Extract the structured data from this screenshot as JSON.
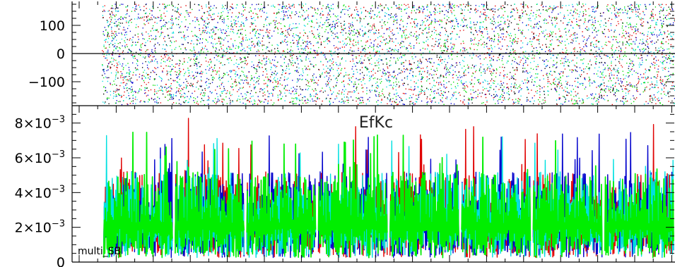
{
  "chart_data": [
    {
      "type": "scatter",
      "panel": "top",
      "title": "",
      "xlabel": "",
      "ylabel": "",
      "ylim": [
        -185,
        185
      ],
      "y_ticks": [
        {
          "value": 100,
          "label": "100"
        },
        {
          "value": 0,
          "label": "0"
        },
        {
          "value": -100,
          "label": "−100"
        }
      ],
      "x_range": [
        0,
        1
      ],
      "data_start": 0.05,
      "horizontal_line_at": 0,
      "series_colors": [
        "#e00000",
        "#0000cc",
        "#00dd00",
        "#00dddd",
        "#000000"
      ],
      "points_per_series": 1400
    },
    {
      "type": "line",
      "panel": "bottom",
      "title": "EfKc",
      "annotation": "multi_SB",
      "xlabel": "",
      "ylabel": "",
      "ylim": [
        0,
        0.009
      ],
      "y_ticks": [
        {
          "value": 0.008,
          "mantissa": "8×10",
          "exponent": "−3"
        },
        {
          "value": 0.006,
          "mantissa": "6×10",
          "exponent": "−3"
        },
        {
          "value": 0.004,
          "mantissa": "4×10",
          "exponent": "−3"
        },
        {
          "value": 0.002,
          "mantissa": "2×10",
          "exponent": "−3"
        },
        {
          "value": 0,
          "mantissa": "0",
          "exponent": ""
        }
      ],
      "segments": 8,
      "typical_range": [
        0.0005,
        0.0052
      ],
      "spike_max": 0.0083,
      "series": [
        {
          "color": "#e00000"
        },
        {
          "color": "#0000cc"
        },
        {
          "color": "#00e0e0"
        },
        {
          "color": "#00ee00"
        }
      ]
    }
  ]
}
